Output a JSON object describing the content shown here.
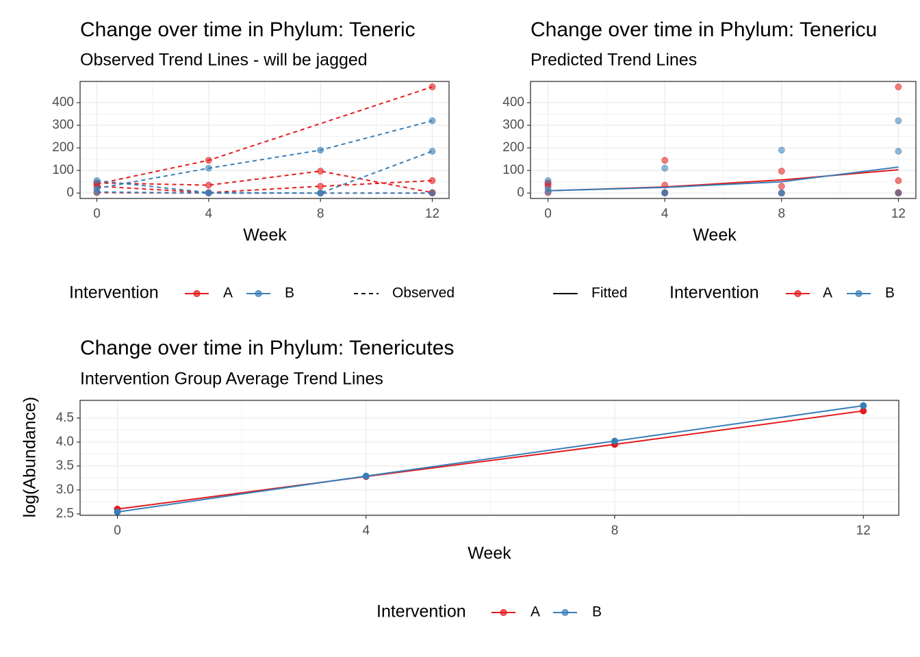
{
  "chart_data": [
    {
      "type": "line",
      "title": "Change over time in Phylum: Teneric",
      "subtitle": "Observed Trend Lines - will be jagged",
      "x_label": "Week",
      "legend_title": "Intervention",
      "linetype_label": "Observed",
      "linestyle": "dashed",
      "markers": true,
      "grid": true,
      "xlim": [
        -0.6,
        12.6
      ],
      "xticks": [
        0,
        4,
        8,
        12
      ],
      "ylim": [
        -24,
        494
      ],
      "yticks": [
        0,
        100,
        200,
        300,
        400
      ],
      "series": [
        {
          "name": "A",
          "color": "#E41A1C",
          "lines": [
            {
              "x": [
                0,
                4,
                12
              ],
              "values": [
                40,
                145,
                470
              ]
            },
            {
              "x": [
                0,
                4,
                8,
                12
              ],
              "values": [
                45,
                35,
                97,
                2
              ]
            },
            {
              "x": [
                0,
                4,
                8,
                12
              ],
              "values": [
                30,
                2,
                30,
                55
              ]
            },
            {
              "x": [
                0,
                4,
                8,
                12
              ],
              "values": [
                2,
                0,
                0,
                0
              ]
            }
          ]
        },
        {
          "name": "B",
          "color": "#377EB8",
          "lines": [
            {
              "x": [
                0,
                4,
                8,
                12
              ],
              "values": [
                20,
                110,
                190,
                320
              ]
            },
            {
              "x": [
                0,
                4,
                8,
                12
              ],
              "values": [
                55,
                2,
                0,
                185
              ]
            },
            {
              "x": [
                0,
                4,
                8,
                12
              ],
              "values": [
                5,
                0,
                0,
                0
              ]
            }
          ]
        }
      ]
    },
    {
      "type": "line",
      "title": "Change over time in Phylum: Tenericu",
      "subtitle": "Predicted Trend Lines",
      "x_label": "Week",
      "legend_title": "Intervention",
      "linetype_label": "Fitted",
      "linestyle": "solid",
      "grid": true,
      "xlim": [
        -0.6,
        12.6
      ],
      "xticks": [
        0,
        4,
        8,
        12
      ],
      "ylim": [
        -24,
        494
      ],
      "yticks": [
        0,
        100,
        200,
        300,
        400
      ],
      "series": [
        {
          "name": "A",
          "color": "#E41A1C",
          "points": {
            "x": [
              0,
              0,
              0,
              0,
              4,
              4,
              4,
              4,
              8,
              8,
              8,
              12,
              12,
              12,
              12
            ],
            "values": [
              40,
              45,
              30,
              2,
              145,
              35,
              2,
              0,
              97,
              30,
              0,
              470,
              2,
              55,
              0
            ]
          },
          "fitted": {
            "x": [
              0,
              4,
              8,
              12
            ],
            "values": [
              10,
              27,
              58,
              103
            ]
          }
        },
        {
          "name": "B",
          "color": "#377EB8",
          "points": {
            "x": [
              0,
              0,
              0,
              4,
              4,
              4,
              8,
              8,
              8,
              12,
              12,
              12
            ],
            "values": [
              20,
              55,
              5,
              110,
              2,
              0,
              190,
              0,
              0,
              320,
              185,
              0
            ]
          },
          "fitted": {
            "x": [
              0,
              4,
              8,
              12
            ],
            "values": [
              10,
              25,
              50,
              115
            ]
          }
        }
      ]
    },
    {
      "type": "line",
      "title": "Change over time in Phylum: Tenericutes",
      "subtitle": "Intervention Group Average Trend Lines",
      "x_label": "Week",
      "y_label": "log(Abundance)",
      "legend_title": "Intervention",
      "markers": true,
      "grid": true,
      "xlim": [
        -0.6,
        12.57
      ],
      "xticks": [
        0,
        4,
        8,
        12
      ],
      "ylim": [
        2.47,
        4.87
      ],
      "yticks": [
        2.5,
        {
          "value": 3,
          "label": "3.0"
        },
        3.5,
        {
          "value": 4,
          "label": "4.0"
        },
        4.5
      ],
      "series": [
        {
          "name": "A",
          "color": "#E41A1C",
          "x": [
            0,
            4,
            8,
            12
          ],
          "values": [
            2.6,
            3.28,
            3.95,
            4.65
          ]
        },
        {
          "name": "B",
          "color": "#377EB8",
          "x": [
            0,
            4,
            8,
            12
          ],
          "values": [
            2.54,
            3.29,
            4.02,
            4.76
          ]
        }
      ]
    }
  ]
}
